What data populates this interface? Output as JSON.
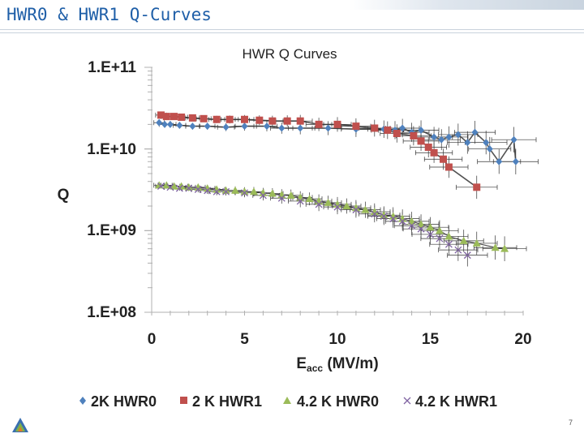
{
  "slide": {
    "title": "HWR0 & HWR1 Q-Curves",
    "page_number": "7",
    "accent_color": "#1f5fa8"
  },
  "chart_data": {
    "type": "scatter",
    "title": "HWR Q Curves",
    "xlabel_main": "E",
    "xlabel_sub": "acc",
    "xlabel_rest": " (MV/m)",
    "ylabel": "Q",
    "y_scale": "log",
    "xlim": [
      0,
      20
    ],
    "ylim": [
      100000000,
      100000000000
    ],
    "x_ticks": [
      0,
      5,
      10,
      15,
      20
    ],
    "x_tick_labels": [
      "0",
      "5",
      "10",
      "15",
      "20"
    ],
    "y_ticks": [
      100000000,
      1000000000,
      10000000000,
      100000000000
    ],
    "y_tick_labels": [
      "1.E+08",
      "1.E+09",
      "1.E+10",
      "1.E+11"
    ],
    "legend_position": "bottom",
    "series": [
      {
        "name": "2K HWR0",
        "marker": "diamond",
        "color": "#4f81bd",
        "x": [
          0.4,
          0.7,
          1.0,
          1.5,
          2.2,
          3.0,
          4.0,
          5.0,
          6.2,
          7.0,
          8.0,
          9.5,
          11.0,
          12.5,
          13.1,
          13.5,
          14.0,
          14.5,
          15.2,
          15.6,
          16.0,
          16.5,
          17.0,
          17.4,
          18.0,
          18.2,
          18.7,
          19.5,
          19.6
        ],
        "y": [
          21000000000.0,
          20000000000.0,
          20000000000.0,
          19500000000.0,
          19000000000.0,
          19000000000.0,
          18500000000.0,
          19000000000.0,
          19000000000.0,
          18000000000.0,
          18000000000.0,
          18000000000.0,
          17500000000.0,
          17500000000.0,
          17000000000.0,
          18000000000.0,
          16000000000.0,
          17000000000.0,
          14000000000.0,
          13000000000.0,
          14000000000.0,
          15000000000.0,
          12000000000.0,
          16000000000.0,
          12000000000.0,
          10000000000.0,
          7000000000.0,
          13000000000.0,
          7000000000.0
        ]
      },
      {
        "name": "2 K HWR1",
        "marker": "square",
        "color": "#c0504d",
        "x": [
          0.5,
          0.8,
          1.2,
          1.6,
          2.2,
          2.8,
          3.5,
          4.2,
          5.0,
          5.8,
          6.5,
          7.3,
          8.0,
          9.0,
          10.0,
          11.0,
          12.0,
          12.7,
          13.2,
          14.1,
          14.5,
          14.9,
          15.2,
          15.7,
          16.0,
          17.5
        ],
        "y": [
          26000000000.0,
          25000000000.0,
          25000000000.0,
          24500000000.0,
          24000000000.0,
          23500000000.0,
          23000000000.0,
          23000000000.0,
          23000000000.0,
          22500000000.0,
          22000000000.0,
          22000000000.0,
          22000000000.0,
          20000000000.0,
          20000000000.0,
          19000000000.0,
          18000000000.0,
          17000000000.0,
          15500000000.0,
          14500000000.0,
          12500000000.0,
          10500000000.0,
          9000000000.0,
          7500000000.0,
          6000000000.0,
          3400000000.0
        ]
      },
      {
        "name": "4.2 K HWR0",
        "marker": "triangle",
        "color": "#9bbb59",
        "x": [
          0.4,
          0.8,
          1.2,
          1.6,
          2.0,
          2.5,
          3.0,
          3.5,
          4.0,
          4.5,
          5.0,
          5.5,
          6.0,
          6.5,
          7.0,
          7.5,
          8.0,
          8.5,
          9.0,
          9.5,
          10.0,
          10.5,
          11.0,
          11.5,
          12.0,
          12.5,
          13.0,
          13.5,
          14.0,
          14.5,
          15.0,
          15.5,
          16.0,
          16.8,
          17.5,
          18.5,
          19.0
        ],
        "y": [
          3600000000.0,
          3600000000.0,
          3500000000.0,
          3500000000.0,
          3400000000.0,
          3400000000.0,
          3300000000.0,
          3200000000.0,
          3100000000.0,
          3100000000.0,
          3000000000.0,
          3000000000.0,
          2900000000.0,
          2850000000.0,
          2750000000.0,
          2700000000.0,
          2550000000.0,
          2450000000.0,
          2300000000.0,
          2200000000.0,
          2100000000.0,
          2000000000.0,
          1900000000.0,
          1800000000.0,
          1700000000.0,
          1550000000.0,
          1500000000.0,
          1400000000.0,
          1300000000.0,
          1200000000.0,
          1100000000.0,
          1000000000.0,
          850000000.0,
          750000000.0,
          700000000.0,
          620000000.0,
          600000000.0
        ]
      },
      {
        "name": "4.2 K HWR1",
        "marker": "x",
        "color": "#8064a2",
        "x": [
          0.5,
          1.0,
          1.5,
          2.0,
          2.5,
          3.0,
          3.5,
          4.0,
          5.0,
          6.0,
          7.0,
          8.0,
          9.0,
          10.0,
          11.0,
          12.0,
          12.5,
          13.0,
          13.5,
          14.0,
          14.5,
          15.0,
          15.5,
          16.0,
          16.5,
          17.0
        ],
        "y": [
          3500000000.0,
          3400000000.0,
          3300000000.0,
          3300000000.0,
          3200000000.0,
          3100000000.0,
          3000000000.0,
          3000000000.0,
          2900000000.0,
          2700000000.0,
          2500000000.0,
          2300000000.0,
          2100000000.0,
          1950000000.0,
          1800000000.0,
          1600000000.0,
          1500000000.0,
          1400000000.0,
          1300000000.0,
          1150000000.0,
          1050000000.0,
          900000000.0,
          800000000.0,
          680000000.0,
          580000000.0,
          500000000.0
        ]
      }
    ]
  }
}
